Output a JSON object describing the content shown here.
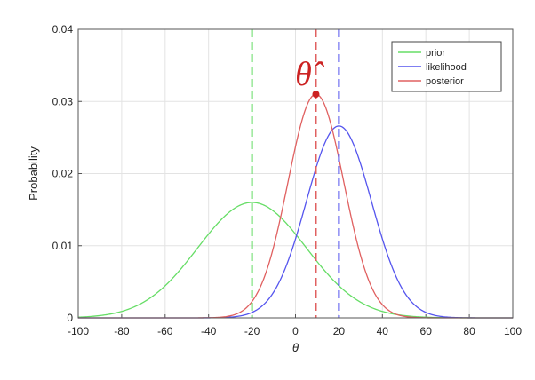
{
  "chart_data": {
    "type": "line",
    "title": "",
    "xlabel": "θ",
    "ylabel": "Probability",
    "xlim": [
      -100,
      100
    ],
    "ylim": [
      0,
      0.04
    ],
    "xticks": [
      "-100",
      "-80",
      "-60",
      "-40",
      "-20",
      "0",
      "20",
      "40",
      "60",
      "80",
      "100"
    ],
    "yticks": [
      "0",
      "0.01",
      "0.02",
      "0.03",
      "0.04"
    ],
    "grid": true,
    "legend_position": "top-right",
    "series": [
      {
        "name": "prior",
        "color": "#66dd66",
        "mean": -20,
        "std": 25,
        "peak": 0.016,
        "vline": -20
      },
      {
        "name": "likelihood",
        "color": "#5555ee",
        "mean": 20,
        "std": 15,
        "peak": 0.0266,
        "vline": 20
      },
      {
        "name": "posterior",
        "color": "#e06060",
        "mean": 9.4,
        "std": 12.86,
        "peak": 0.031,
        "vline": 9.4
      }
    ],
    "annotation": {
      "text": "θ̂",
      "color": "#cc2222",
      "point": {
        "x": 9.4,
        "y": 0.031
      }
    }
  }
}
